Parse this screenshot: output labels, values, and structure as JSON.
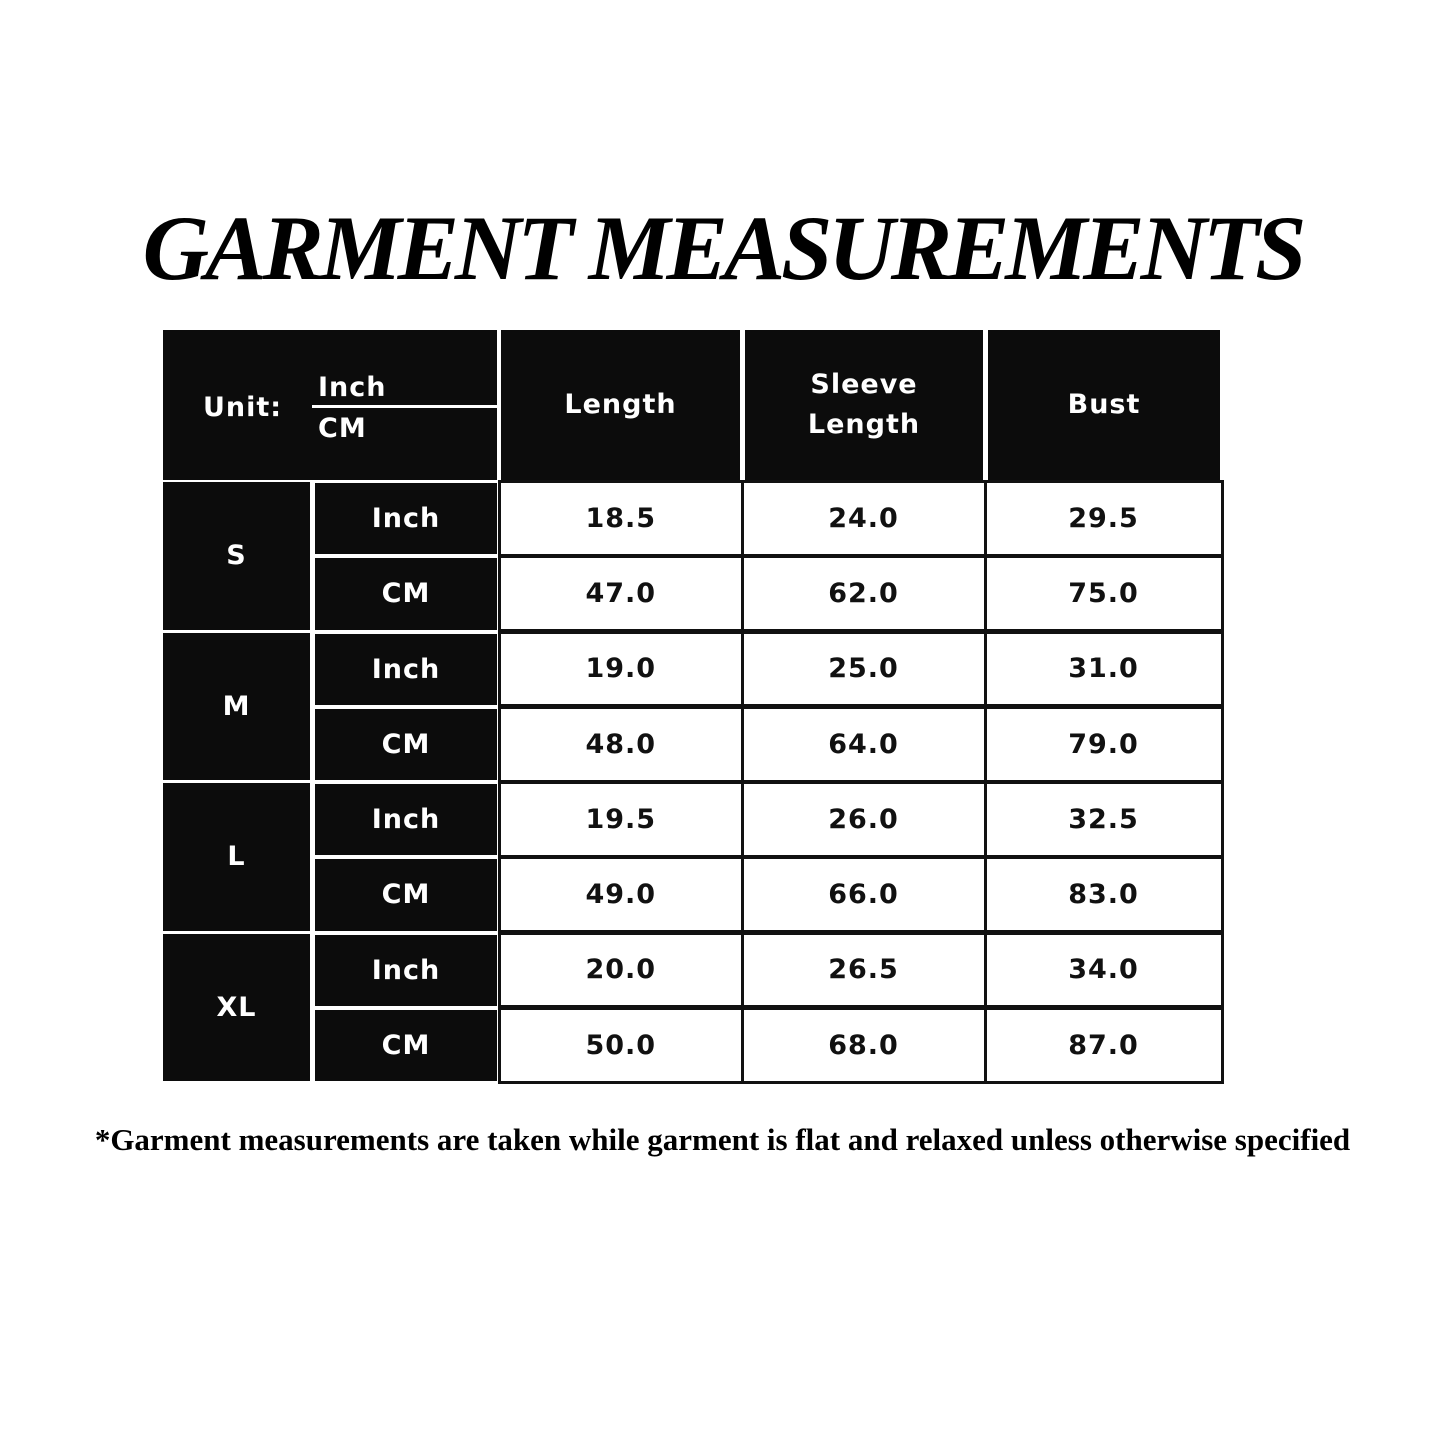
{
  "title": "GARMENT MEASUREMENTS",
  "table": {
    "unit_label": "Unit:",
    "unit_top": "Inch",
    "unit_bottom": "CM",
    "headers": [
      "Length",
      "Sleeve Length",
      "Bust"
    ],
    "sizes": [
      {
        "size": "S",
        "rows": [
          {
            "unit": "Inch",
            "values": [
              "18.5",
              "24.0",
              "29.5"
            ]
          },
          {
            "unit": "CM",
            "values": [
              "47.0",
              "62.0",
              "75.0"
            ]
          }
        ]
      },
      {
        "size": "M",
        "rows": [
          {
            "unit": "Inch",
            "values": [
              "19.0",
              "25.0",
              "31.0"
            ]
          },
          {
            "unit": "CM",
            "values": [
              "48.0",
              "64.0",
              "79.0"
            ]
          }
        ]
      },
      {
        "size": "L",
        "rows": [
          {
            "unit": "Inch",
            "values": [
              "19.5",
              "26.0",
              "32.5"
            ]
          },
          {
            "unit": "CM",
            "values": [
              "49.0",
              "66.0",
              "83.0"
            ]
          }
        ]
      },
      {
        "size": "XL",
        "rows": [
          {
            "unit": "Inch",
            "values": [
              "20.0",
              "26.5",
              "34.0"
            ]
          },
          {
            "unit": "CM",
            "values": [
              "50.0",
              "68.0",
              "87.0"
            ]
          }
        ]
      }
    ]
  },
  "footnote": "*Garment measurements are taken while garment is flat and relaxed unless otherwise specified"
}
